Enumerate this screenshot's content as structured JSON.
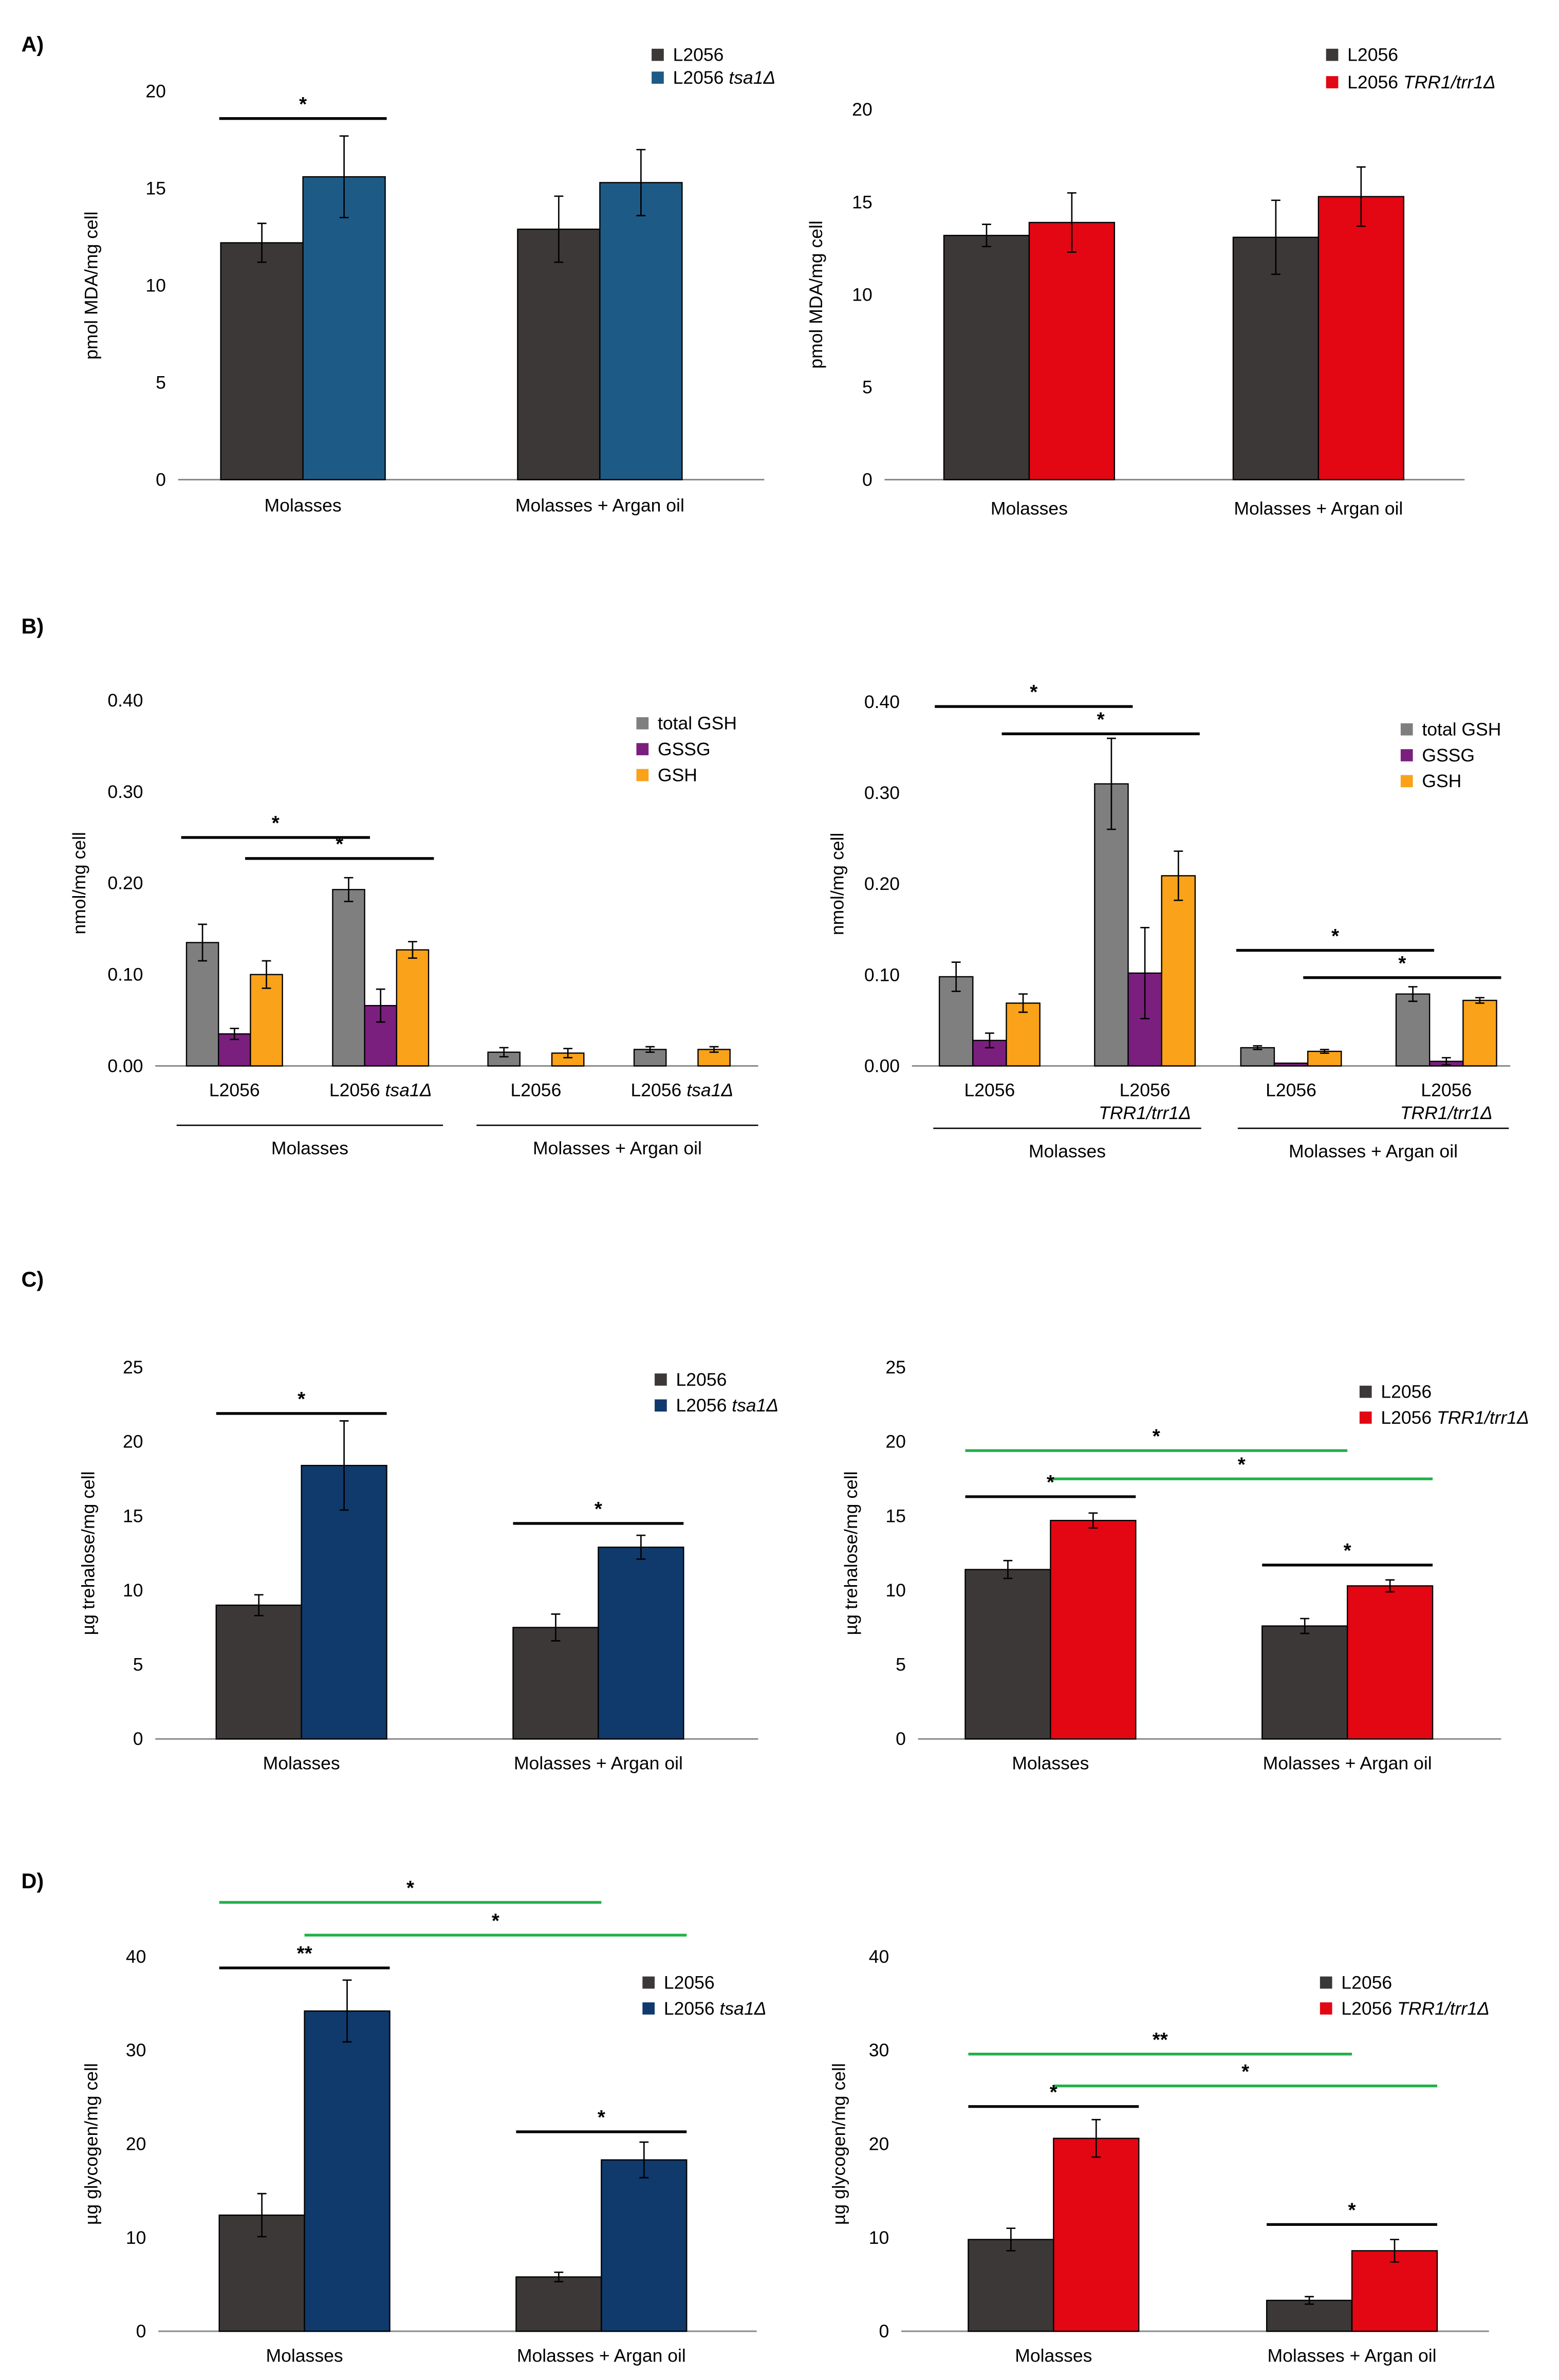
{
  "colors": {
    "dark": "#3b3837",
    "blue_a": "#1e5a86",
    "blue_cd": "#0f3a6b",
    "red": "#e30613",
    "gray": "#7f7f7f",
    "purple": "#7b1f7e",
    "orange": "#f9a21a",
    "green": "#22b14c",
    "black": "#000000"
  },
  "panel_labels": [
    "A)",
    "B)",
    "C)",
    "D)"
  ],
  "chart_data": [
    {
      "id": "A-left",
      "type": "bar",
      "panel": "A",
      "ylabel": "pmol MDA/mg cell",
      "ylim": [
        0,
        20
      ],
      "yticks": [
        "0",
        "5",
        "10",
        "15",
        "20"
      ],
      "groups": [
        "Molasses",
        "Molasses + Argan oil"
      ],
      "series": [
        {
          "name": "L2056",
          "color": "dark",
          "values": [
            12.2,
            12.9
          ],
          "errors": [
            1.0,
            1.7
          ]
        },
        {
          "name": "L2056 tsa1Δ",
          "name_plain": "L2056 ",
          "name_italic": "tsa1Δ",
          "color": "blue_a",
          "values": [
            15.6,
            15.3
          ],
          "errors": [
            2.1,
            1.7
          ]
        }
      ],
      "annotations": [
        {
          "label": "*",
          "from": [
            0,
            0
          ],
          "to": [
            0,
            1
          ],
          "y": 18.6,
          "color": "black"
        }
      ]
    },
    {
      "id": "A-right",
      "type": "bar",
      "panel": "A",
      "ylabel": "pmol MDA/mg cell",
      "ylim": [
        0,
        20
      ],
      "yticks": [
        "0",
        "5",
        "10",
        "15",
        "20"
      ],
      "groups": [
        "Molasses",
        "Molasses + Argan oil"
      ],
      "series": [
        {
          "name": "L2056",
          "color": "dark",
          "values": [
            13.2,
            13.1
          ],
          "errors": [
            0.6,
            2.0
          ]
        },
        {
          "name": "L2056 TRR1/trr1Δ",
          "name_plain": "L2056 ",
          "name_italic": "TRR1/trr1Δ",
          "color": "red",
          "values": [
            13.9,
            15.3
          ],
          "errors": [
            1.6,
            1.6
          ]
        }
      ],
      "annotations": []
    },
    {
      "id": "B-left",
      "type": "bar",
      "panel": "B",
      "ylabel": "nmol/mg cell",
      "ylim": [
        0,
        0.4
      ],
      "yticks": [
        "0.00",
        "0.10",
        "0.20",
        "0.30",
        "0.40"
      ],
      "groups": [
        "L2056",
        "L2056 tsa1Δ",
        "L2056",
        "L2056 tsa1Δ"
      ],
      "group_labels": [
        {
          "plain": "L2056",
          "italic": ""
        },
        {
          "plain": "L2056 ",
          "italic": "tsa1Δ"
        },
        {
          "plain": "L2056",
          "italic": ""
        },
        {
          "plain": "L2056 ",
          "italic": "tsa1Δ"
        }
      ],
      "conditions": [
        "Molasses",
        "Molasses + Argan oil"
      ],
      "series": [
        {
          "name": "total GSH",
          "color": "gray",
          "values": [
            0.135,
            0.193,
            0.015,
            0.018
          ],
          "errors": [
            0.02,
            0.013,
            0.005,
            0.003
          ]
        },
        {
          "name": "GSSG",
          "color": "purple",
          "values": [
            0.035,
            0.066,
            0,
            0
          ],
          "errors": [
            0.006,
            0.018,
            0,
            0
          ]
        },
        {
          "name": "GSH",
          "color": "orange",
          "values": [
            0.1,
            0.127,
            0.014,
            0.018
          ],
          "errors": [
            0.015,
            0.009,
            0.005,
            0.003
          ]
        }
      ],
      "annotations": [
        {
          "label": "*",
          "from": [
            0,
            0
          ],
          "to": [
            1,
            0
          ],
          "y": 0.25,
          "color": "black"
        },
        {
          "label": "*",
          "from": [
            0,
            2
          ],
          "to": [
            1,
            2
          ],
          "y": 0.227,
          "color": "black"
        }
      ]
    },
    {
      "id": "B-right",
      "type": "bar",
      "panel": "B",
      "ylabel": "nmol/mg cell",
      "ylim": [
        0,
        0.4
      ],
      "yticks": [
        "0.00",
        "0.10",
        "0.20",
        "0.30",
        "0.40"
      ],
      "groups": [
        "L2056",
        "L2056 TRR1/trr1Δ",
        "L2056",
        "L2056 TRR1/trr1Δ"
      ],
      "group_labels": [
        {
          "plain": "L2056",
          "italic": ""
        },
        {
          "plain": "L2056",
          "italic": "TRR1/trr1Δ"
        },
        {
          "plain": "L2056",
          "italic": ""
        },
        {
          "plain": "L2056",
          "italic": "TRR1/trr1Δ"
        }
      ],
      "conditions": [
        "Molasses",
        "Molasses + Argan oil"
      ],
      "series": [
        {
          "name": "total GSH",
          "color": "gray",
          "values": [
            0.098,
            0.31,
            0.02,
            0.079
          ],
          "errors": [
            0.016,
            0.05,
            0.002,
            0.008
          ]
        },
        {
          "name": "GSSG",
          "color": "purple",
          "values": [
            0.028,
            0.102,
            0.003,
            0.005
          ],
          "errors": [
            0.008,
            0.05,
            0,
            0.004
          ]
        },
        {
          "name": "GSH",
          "color": "orange",
          "values": [
            0.069,
            0.209,
            0.016,
            0.072
          ],
          "errors": [
            0.01,
            0.027,
            0.002,
            0.003
          ]
        }
      ],
      "annotations": [
        {
          "label": "*",
          "from": [
            0,
            0
          ],
          "to": [
            1,
            0
          ],
          "y": 0.395,
          "color": "black"
        },
        {
          "label": "*",
          "from": [
            0,
            2
          ],
          "to": [
            1,
            2
          ],
          "y": 0.365,
          "color": "black"
        },
        {
          "label": "*",
          "from": [
            2,
            0
          ],
          "to": [
            3,
            0
          ],
          "y": 0.127,
          "color": "black"
        },
        {
          "label": "*",
          "from": [
            2,
            2
          ],
          "to": [
            3,
            2
          ],
          "y": 0.097,
          "color": "black"
        }
      ]
    },
    {
      "id": "C-left",
      "type": "bar",
      "panel": "C",
      "ylabel": "µg trehalose/mg cell",
      "ylim": [
        0,
        25
      ],
      "yticks": [
        "0",
        "5",
        "10",
        "15",
        "20",
        "25"
      ],
      "groups": [
        "Molasses",
        "Molasses + Argan oil"
      ],
      "series": [
        {
          "name": "L2056",
          "color": "dark",
          "values": [
            9.0,
            7.5
          ],
          "errors": [
            0.7,
            0.9
          ]
        },
        {
          "name": "L2056 tsa1Δ",
          "name_plain": "L2056 ",
          "name_italic": "tsa1Δ",
          "color": "blue_cd",
          "values": [
            18.4,
            12.9
          ],
          "errors": [
            3.0,
            0.8
          ]
        }
      ],
      "annotations": [
        {
          "label": "*",
          "from": [
            0,
            0
          ],
          "to": [
            0,
            1
          ],
          "y": 21.9,
          "color": "black"
        },
        {
          "label": "*",
          "from": [
            1,
            0
          ],
          "to": [
            1,
            1
          ],
          "y": 14.5,
          "color": "black"
        }
      ]
    },
    {
      "id": "C-right",
      "type": "bar",
      "panel": "C",
      "ylabel": "µg trehalose/mg cell",
      "ylim": [
        0,
        25
      ],
      "yticks": [
        "0",
        "5",
        "10",
        "15",
        "20",
        "25"
      ],
      "groups": [
        "Molasses",
        "Molasses + Argan oil"
      ],
      "series": [
        {
          "name": "L2056",
          "color": "dark",
          "values": [
            11.4,
            7.6
          ],
          "errors": [
            0.6,
            0.5
          ]
        },
        {
          "name": "L2056 TRR1/trr1Δ",
          "name_plain": "L2056 ",
          "name_italic": "TRR1/trr1Δ",
          "color": "red",
          "values": [
            14.7,
            10.3
          ],
          "errors": [
            0.5,
            0.4
          ]
        }
      ],
      "annotations": [
        {
          "label": "*",
          "from": [
            0,
            0
          ],
          "to": [
            1,
            0
          ],
          "y": 19.4,
          "color": "green"
        },
        {
          "label": "*",
          "from": [
            0,
            1
          ],
          "to": [
            1,
            1
          ],
          "y": 17.5,
          "color": "green"
        },
        {
          "label": "*",
          "from": [
            0,
            0
          ],
          "to": [
            0,
            1
          ],
          "y": 16.3,
          "color": "black"
        },
        {
          "label": "*",
          "from": [
            1,
            0
          ],
          "to": [
            1,
            1
          ],
          "y": 11.7,
          "color": "black"
        }
      ]
    },
    {
      "id": "D-left",
      "type": "bar",
      "panel": "D",
      "ylabel": "µg glycogen/mg cell",
      "ylim": [
        0,
        40
      ],
      "yticks": [
        "0",
        "10",
        "20",
        "30",
        "40"
      ],
      "groups": [
        "Molasses",
        "Molasses + Argan oil"
      ],
      "series": [
        {
          "name": "L2056",
          "color": "dark",
          "values": [
            12.4,
            5.8
          ],
          "errors": [
            2.3,
            0.5
          ]
        },
        {
          "name": "L2056 tsa1Δ",
          "name_plain": "L2056 ",
          "name_italic": "tsa1Δ",
          "color": "blue_cd",
          "values": [
            34.2,
            18.3
          ],
          "errors": [
            3.3,
            1.9
          ]
        }
      ],
      "annotations": [
        {
          "label": "*",
          "from": [
            0,
            0
          ],
          "to": [
            1,
            0
          ],
          "y": 45.8,
          "color": "green"
        },
        {
          "label": "*",
          "from": [
            0,
            1
          ],
          "to": [
            1,
            1
          ],
          "y": 42.3,
          "color": "green"
        },
        {
          "label": "**",
          "from": [
            0,
            0
          ],
          "to": [
            0,
            1
          ],
          "y": 38.8,
          "color": "black"
        },
        {
          "label": "*",
          "from": [
            1,
            0
          ],
          "to": [
            1,
            1
          ],
          "y": 21.3,
          "color": "black"
        }
      ]
    },
    {
      "id": "D-right",
      "type": "bar",
      "panel": "D",
      "ylabel": "µg glycogen/mg cell",
      "ylim": [
        0,
        40
      ],
      "yticks": [
        "0",
        "10",
        "20",
        "30",
        "40"
      ],
      "groups": [
        "Molasses",
        "Molasses + Argan oil"
      ],
      "series": [
        {
          "name": "L2056",
          "color": "dark",
          "values": [
            9.8,
            3.3
          ],
          "errors": [
            1.2,
            0.4
          ]
        },
        {
          "name": "L2056 TRR1/trr1Δ",
          "name_plain": "L2056 ",
          "name_italic": "TRR1/trr1Δ",
          "color": "red",
          "values": [
            20.6,
            8.6
          ],
          "errors": [
            2.0,
            1.2
          ]
        }
      ],
      "annotations": [
        {
          "label": "**",
          "from": [
            0,
            0
          ],
          "to": [
            1,
            0
          ],
          "y": 29.6,
          "color": "green"
        },
        {
          "label": "*",
          "from": [
            0,
            1
          ],
          "to": [
            1,
            1
          ],
          "y": 26.2,
          "color": "green"
        },
        {
          "label": "*",
          "from": [
            0,
            0
          ],
          "to": [
            0,
            1
          ],
          "y": 24.0,
          "color": "black"
        },
        {
          "label": "*",
          "from": [
            1,
            0
          ],
          "to": [
            1,
            1
          ],
          "y": 11.4,
          "color": "black"
        }
      ]
    }
  ]
}
